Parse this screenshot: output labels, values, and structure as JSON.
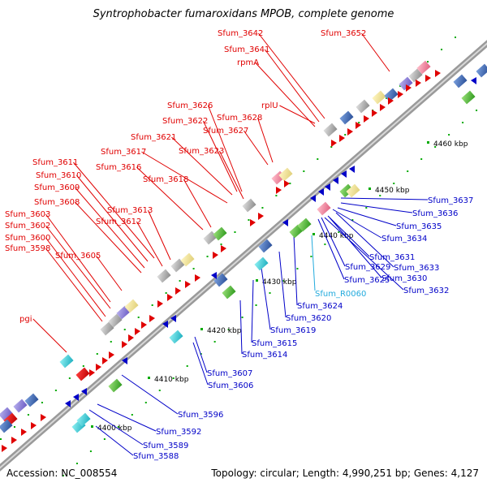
{
  "title": "Syntrophobacter fumaroxidans MPOB, complete genome",
  "footer": {
    "accession": "Accession: NC_008554",
    "summary": "Topology: circular; Length: 4,990,251 bp; Genes: 4,127"
  },
  "colors": {
    "forward_label": "#e00000",
    "reverse_label": "#0000c8",
    "rna_label": "#22aadd",
    "backbone": "#888888",
    "tick": "#00aa00"
  },
  "ticks": [
    {
      "label": "4400 kbp"
    },
    {
      "label": "4410 kbp"
    },
    {
      "label": "4420 kbp"
    },
    {
      "label": "4430 kbp"
    },
    {
      "label": "4440 kbp"
    },
    {
      "label": "4450 kbp"
    },
    {
      "label": "4460 kbp"
    }
  ],
  "forward_labels": [
    {
      "text": "Sfum_3642"
    },
    {
      "text": "Sfum_3652"
    },
    {
      "text": "Sfum_3641"
    },
    {
      "text": "rpmA"
    },
    {
      "text": "Sfum_3626"
    },
    {
      "text": "rplU"
    },
    {
      "text": "Sfum_3628"
    },
    {
      "text": "Sfum_3622"
    },
    {
      "text": "Sfum_3627"
    },
    {
      "text": "Sfum_3621"
    },
    {
      "text": "Sfum_3617"
    },
    {
      "text": "Sfum_3623"
    },
    {
      "text": "Sfum_3611"
    },
    {
      "text": "Sfum_3616"
    },
    {
      "text": "Sfum_3610"
    },
    {
      "text": "Sfum_3618"
    },
    {
      "text": "Sfum_3609"
    },
    {
      "text": "Sfum_3608"
    },
    {
      "text": "Sfum_3613"
    },
    {
      "text": "Sfum_3603"
    },
    {
      "text": "Sfum_3612"
    },
    {
      "text": "Sfum_3602"
    },
    {
      "text": "Sfum_3600"
    },
    {
      "text": "Sfum_3598"
    },
    {
      "text": "Sfum_3605"
    },
    {
      "text": "pgi"
    }
  ],
  "reverse_labels": [
    {
      "text": "Sfum_3637"
    },
    {
      "text": "Sfum_3636"
    },
    {
      "text": "Sfum_3635"
    },
    {
      "text": "Sfum_3634"
    },
    {
      "text": "Sfum_3631"
    },
    {
      "text": "Sfum_3633"
    },
    {
      "text": "Sfum_3629"
    },
    {
      "text": "Sfum_3625"
    },
    {
      "text": "Sfum_3630"
    },
    {
      "text": "Sfum_3632"
    },
    {
      "text": "Sfum_3624"
    },
    {
      "text": "Sfum_3620"
    },
    {
      "text": "Sfum_3619"
    },
    {
      "text": "Sfum_3615"
    },
    {
      "text": "Sfum_3614"
    },
    {
      "text": "Sfum_3607"
    },
    {
      "text": "Sfum_3606"
    },
    {
      "text": "Sfum_3596"
    },
    {
      "text": "Sfum_3592"
    },
    {
      "text": "Sfum_3589"
    },
    {
      "text": "Sfum_3588"
    }
  ],
  "rna_labels": [
    {
      "text": "Sfum_R0060"
    }
  ]
}
